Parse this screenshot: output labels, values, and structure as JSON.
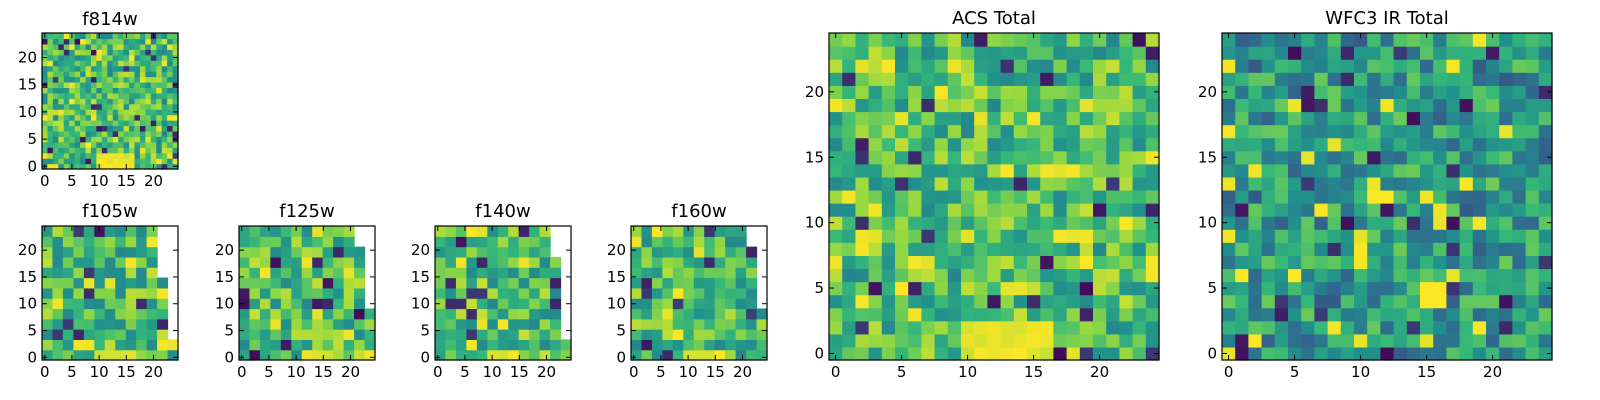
{
  "chart_data": [
    {
      "id": "f814w",
      "type": "heatmap",
      "title": "f814w",
      "grid": [
        25,
        25
      ],
      "xticks": [
        "0",
        "5",
        "10",
        "15",
        "20"
      ],
      "yticks": [
        "0",
        "5",
        "10",
        "15",
        "20"
      ],
      "xlim": [
        -0.5,
        24.5
      ],
      "ylim": [
        -0.5,
        24.5
      ],
      "colormap": "viridis",
      "seed": 11,
      "hotspot": {
        "x": 13,
        "y": 1,
        "rx": 4,
        "ry": 2
      },
      "blank_edge": null
    },
    {
      "id": "f105w",
      "type": "heatmap",
      "title": "f105w",
      "grid": [
        13,
        13
      ],
      "xticks": [
        "0",
        "5",
        "10",
        "15",
        "20"
      ],
      "yticks": [
        "0",
        "5",
        "10",
        "15",
        "20"
      ],
      "xlim": [
        -0.5,
        24.5
      ],
      "ylim": [
        -0.5,
        24.5
      ],
      "colormap": "viridis",
      "seed": 23,
      "hotspot": {
        "x": 13,
        "y": 0,
        "rx": 4,
        "ry": 1
      },
      "blank_edge": {
        "x_top": 20,
        "x_bottom": 24
      }
    },
    {
      "id": "f125w",
      "type": "heatmap",
      "title": "f125w",
      "grid": [
        13,
        13
      ],
      "xticks": [
        "0",
        "5",
        "10",
        "15",
        "20"
      ],
      "yticks": [
        "0",
        "5",
        "10",
        "15",
        "20"
      ],
      "xlim": [
        -0.5,
        24.5
      ],
      "ylim": [
        -0.5,
        24.5
      ],
      "colormap": "viridis",
      "seed": 37,
      "hotspot": {
        "x": 14,
        "y": 0,
        "rx": 3,
        "ry": 1
      },
      "blank_edge": {
        "x_top": 21,
        "x_bottom": 25
      }
    },
    {
      "id": "f140w",
      "type": "heatmap",
      "title": "f140w",
      "grid": [
        13,
        13
      ],
      "xticks": [
        "0",
        "5",
        "10",
        "15",
        "20"
      ],
      "yticks": [
        "0",
        "5",
        "10",
        "15",
        "20"
      ],
      "xlim": [
        -0.5,
        24.5
      ],
      "ylim": [
        -0.5,
        24.5
      ],
      "colormap": "viridis",
      "seed": 51,
      "hotspot": {
        "x": 12,
        "y": 0,
        "rx": 4,
        "ry": 1
      },
      "blank_edge": {
        "x_top": 21,
        "x_bottom": 24
      }
    },
    {
      "id": "f160w",
      "type": "heatmap",
      "title": "f160w",
      "grid": [
        13,
        13
      ],
      "xticks": [
        "0",
        "5",
        "10",
        "15",
        "20"
      ],
      "yticks": [
        "0",
        "5",
        "10",
        "15",
        "20"
      ],
      "xlim": [
        -0.5,
        24.5
      ],
      "ylim": [
        -0.5,
        24.5
      ],
      "colormap": "viridis",
      "seed": 67,
      "hotspot": {
        "x": 12,
        "y": 0,
        "rx": 3,
        "ry": 1
      },
      "blank_edge": {
        "x_top": 21,
        "x_bottom": 25
      }
    },
    {
      "id": "acs_total",
      "type": "heatmap",
      "title": "ACS Total",
      "grid": [
        25,
        25
      ],
      "xticks": [
        "0",
        "5",
        "10",
        "15",
        "20"
      ],
      "yticks": [
        "0",
        "5",
        "10",
        "15",
        "20"
      ],
      "xlim": [
        -0.5,
        24.5
      ],
      "ylim": [
        -0.5,
        24.5
      ],
      "colormap": "viridis",
      "seed": 83,
      "hotspot": {
        "x": 13,
        "y": 1,
        "rx": 4,
        "ry": 2
      },
      "blank_edge": null
    },
    {
      "id": "wfc3_ir_total",
      "type": "heatmap",
      "title": "WFC3 IR Total",
      "grid": [
        25,
        25
      ],
      "xticks": [
        "0",
        "5",
        "10",
        "15",
        "20"
      ],
      "yticks": [
        "0",
        "5",
        "10",
        "15",
        "20"
      ],
      "xlim": [
        -0.5,
        24.5
      ],
      "ylim": [
        -0.5,
        24.5
      ],
      "colormap": "viridis",
      "seed": 97,
      "hotspot": null,
      "blank_edge": null,
      "bright_cells": [
        [
          15,
          4
        ],
        [
          16,
          4
        ],
        [
          15,
          5
        ],
        [
          16,
          5
        ],
        [
          12,
          12
        ],
        [
          11,
          12
        ],
        [
          5,
          6
        ]
      ],
      "value_bias": -0.18
    }
  ],
  "colors": {
    "viridis": [
      "#440154",
      "#31688e",
      "#21918c",
      "#35b779",
      "#90d743",
      "#fde725"
    ]
  }
}
